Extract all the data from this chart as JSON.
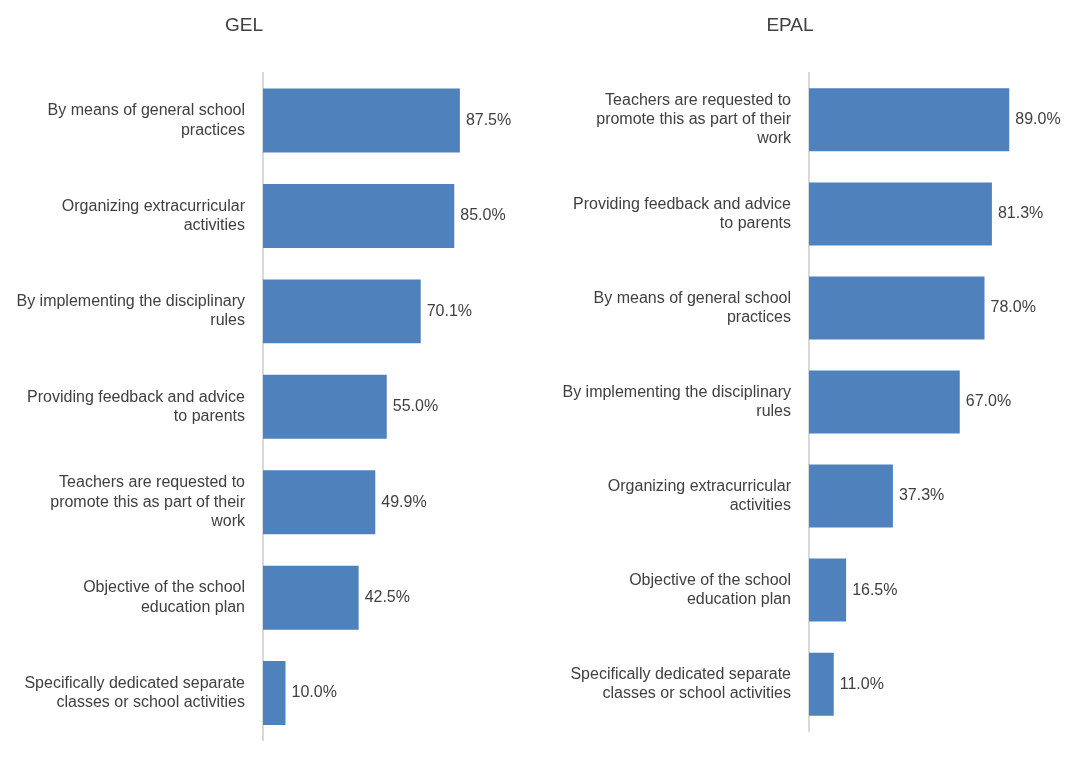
{
  "chart_data": [
    {
      "type": "bar",
      "orientation": "horizontal",
      "title": "GEL",
      "categories": [
        "By means of general school practices",
        "Organizing extracurricular activities",
        "By implementing the disciplinary rules",
        "Providing feedback and advice to parents",
        "Teachers are requested to promote this as part of their work",
        "Objective of the school education plan",
        "Specifically dedicated separate classes or school activities"
      ],
      "values": [
        87.5,
        85.0,
        70.1,
        55.0,
        49.9,
        42.5,
        10.0
      ],
      "value_labels": [
        "87.5%",
        "85.0%",
        "70.1%",
        "55.0%",
        "49.9%",
        "42.5%",
        "10.0%"
      ],
      "color": "#4f81bd",
      "grid": false,
      "legend": false
    },
    {
      "type": "bar",
      "orientation": "horizontal",
      "title": "EPAL",
      "categories": [
        "Teachers are requested to promote this as part of their work",
        "Providing feedback and advice to parents",
        "By means of general school practices",
        "By implementing the disciplinary rules",
        "Organizing extracurricular activities",
        "Objective of the school education plan",
        "Specifically dedicated separate classes or school activities"
      ],
      "values": [
        89.0,
        81.3,
        78.0,
        67.0,
        37.3,
        16.5,
        11.0
      ],
      "value_labels": [
        "89.0%",
        "81.3%",
        "78.0%",
        "67.0%",
        "37.3%",
        "16.5%",
        "11.0%"
      ],
      "color": "#4f81bd",
      "grid": false,
      "legend": false
    }
  ]
}
